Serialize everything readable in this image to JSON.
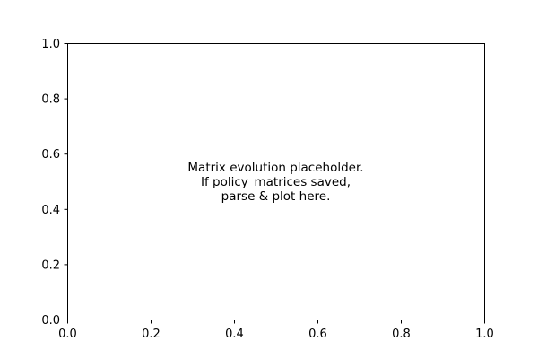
{
  "chart_data": {
    "type": "line",
    "title": "",
    "xlabel": "",
    "ylabel": "",
    "xlim": [
      0.0,
      1.0
    ],
    "ylim": [
      0.0,
      1.0
    ],
    "xticks": [
      "0.0",
      "0.2",
      "0.4",
      "0.6",
      "0.8",
      "1.0"
    ],
    "yticks": [
      "0.0",
      "0.2",
      "0.4",
      "0.6",
      "0.8",
      "1.0"
    ],
    "grid": false,
    "series": [],
    "annotation": {
      "lines": [
        "Matrix evolution placeholder.",
        "If policy_matrices saved,",
        "parse & plot here."
      ],
      "x": 0.5,
      "y": 0.5
    },
    "colors": {
      "axes": "#000000",
      "background": "#ffffff",
      "text": "#000000"
    }
  }
}
